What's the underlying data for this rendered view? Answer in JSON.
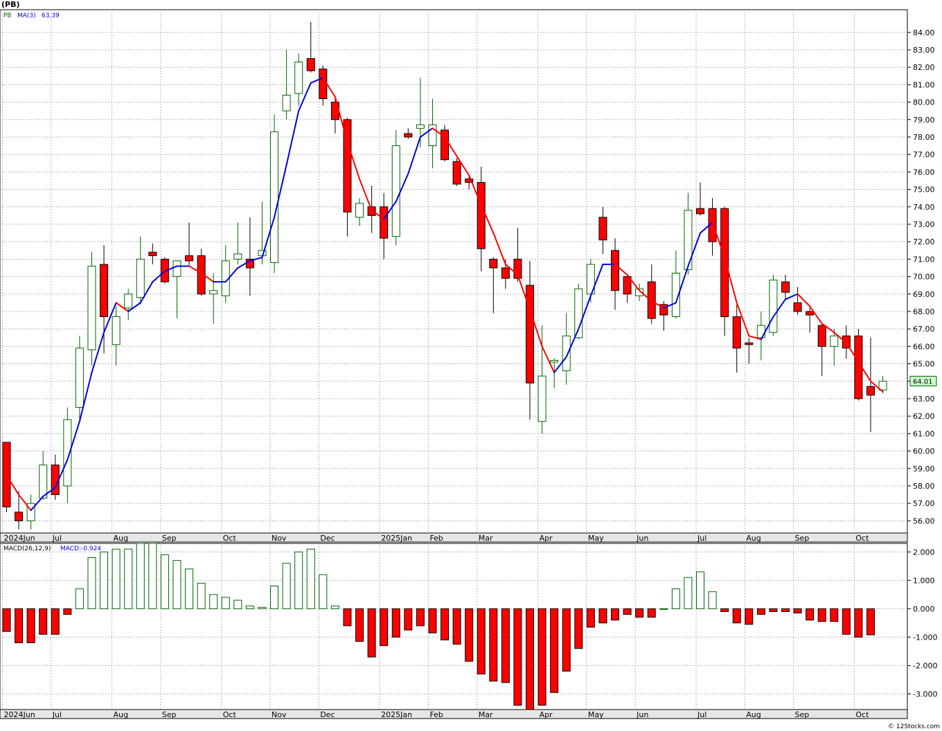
{
  "header": {
    "symbol": "(PB)",
    "legend_ticker": "PB",
    "legend_ma": "MA(3)",
    "legend_ma_value": "63.39"
  },
  "macd_header": {
    "label": "MACD(26,12,9)",
    "value_label": "MACD:-0.924"
  },
  "last_price_label": "64.01",
  "footer": {
    "credit": "© 12Stocks.com"
  },
  "colors": {
    "up": "#006400",
    "down": "#ff0000",
    "ma_up": "#0000dd",
    "ma_down": "#ff0000",
    "grid": "#b4b4b4",
    "axis_bg": "#e6e6e6"
  },
  "chart_data": [
    {
      "type": "candlestick",
      "ylim": [
        55.3,
        85.3
      ],
      "yticks": [
        56,
        57,
        58,
        59,
        60,
        61,
        62,
        63,
        64,
        65,
        66,
        67,
        68,
        69,
        70,
        71,
        72,
        73,
        74,
        75,
        76,
        77,
        78,
        79,
        80,
        81,
        82,
        83,
        84
      ],
      "x_labels": [
        {
          "label": "2024Jun",
          "i": 0
        },
        {
          "label": "Jul",
          "i": 4
        },
        {
          "label": "Aug",
          "i": 9
        },
        {
          "label": "Sep",
          "i": 13
        },
        {
          "label": "Oct",
          "i": 18
        },
        {
          "label": "Nov",
          "i": 22
        },
        {
          "label": "Dec",
          "i": 26
        },
        {
          "label": "2025Jan",
          "i": 31
        },
        {
          "label": "Feb",
          "i": 35
        },
        {
          "label": "Mar",
          "i": 39
        },
        {
          "label": "Apr",
          "i": 44
        },
        {
          "label": "May",
          "i": 48
        },
        {
          "label": "Jun",
          "i": 52
        },
        {
          "label": "Jul",
          "i": 57
        },
        {
          "label": "Aug",
          "i": 61
        },
        {
          "label": "Sep",
          "i": 65
        },
        {
          "label": "Oct",
          "i": 70
        }
      ],
      "candles": [
        {
          "o": 60.5,
          "h": 60.5,
          "l": 56.5,
          "c": 56.8
        },
        {
          "o": 56.5,
          "h": 57.7,
          "l": 55.5,
          "c": 56.0
        },
        {
          "o": 56.0,
          "h": 57.5,
          "l": 55.5,
          "c": 57.0
        },
        {
          "o": 57.3,
          "h": 60.0,
          "l": 57.2,
          "c": 59.2
        },
        {
          "o": 59.2,
          "h": 59.8,
          "l": 57.2,
          "c": 57.5
        },
        {
          "o": 58.0,
          "h": 62.5,
          "l": 57.0,
          "c": 61.8
        },
        {
          "o": 62.5,
          "h": 66.6,
          "l": 61.8,
          "c": 65.9
        },
        {
          "o": 65.8,
          "h": 71.4,
          "l": 64.9,
          "c": 70.6
        },
        {
          "o": 70.7,
          "h": 71.8,
          "l": 65.6,
          "c": 67.7
        },
        {
          "o": 66.1,
          "h": 68.3,
          "l": 64.9,
          "c": 67.7
        },
        {
          "o": 68.2,
          "h": 69.3,
          "l": 67.5,
          "c": 69.0
        },
        {
          "o": 68.8,
          "h": 72.3,
          "l": 68.4,
          "c": 71.0
        },
        {
          "o": 71.4,
          "h": 71.9,
          "l": 70.7,
          "c": 71.2
        },
        {
          "o": 71.0,
          "h": 71.1,
          "l": 69.6,
          "c": 69.7
        },
        {
          "o": 70.0,
          "h": 70.9,
          "l": 67.6,
          "c": 70.9
        },
        {
          "o": 71.2,
          "h": 73.1,
          "l": 70.6,
          "c": 70.9
        },
        {
          "o": 71.2,
          "h": 71.6,
          "l": 68.9,
          "c": 69.0
        },
        {
          "o": 69.0,
          "h": 70.2,
          "l": 67.3,
          "c": 69.2
        },
        {
          "o": 68.9,
          "h": 71.8,
          "l": 68.5,
          "c": 70.9
        },
        {
          "o": 71.0,
          "h": 73.1,
          "l": 70.7,
          "c": 71.3
        },
        {
          "o": 71.0,
          "h": 73.4,
          "l": 68.9,
          "c": 70.5
        },
        {
          "o": 71.2,
          "h": 74.3,
          "l": 70.7,
          "c": 71.5
        },
        {
          "o": 70.8,
          "h": 79.3,
          "l": 70.2,
          "c": 78.3
        },
        {
          "o": 79.5,
          "h": 83.0,
          "l": 79.0,
          "c": 80.4
        },
        {
          "o": 80.5,
          "h": 82.8,
          "l": 79.8,
          "c": 82.3
        },
        {
          "o": 82.5,
          "h": 84.6,
          "l": 81.7,
          "c": 81.8
        },
        {
          "o": 81.9,
          "h": 82.1,
          "l": 79.8,
          "c": 80.2
        },
        {
          "o": 80.0,
          "h": 80.2,
          "l": 78.2,
          "c": 79.0
        },
        {
          "o": 79.0,
          "h": 79.1,
          "l": 72.3,
          "c": 73.7
        },
        {
          "o": 73.4,
          "h": 74.5,
          "l": 72.9,
          "c": 74.2
        },
        {
          "o": 74.0,
          "h": 75.2,
          "l": 72.5,
          "c": 73.5
        },
        {
          "o": 74.0,
          "h": 74.8,
          "l": 71.0,
          "c": 72.2
        },
        {
          "o": 72.3,
          "h": 78.4,
          "l": 71.8,
          "c": 77.5
        },
        {
          "o": 78.2,
          "h": 78.5,
          "l": 77.9,
          "c": 78.0
        },
        {
          "o": 78.5,
          "h": 81.4,
          "l": 77.4,
          "c": 78.7
        },
        {
          "o": 77.5,
          "h": 80.2,
          "l": 76.2,
          "c": 78.7
        },
        {
          "o": 78.4,
          "h": 78.7,
          "l": 76.6,
          "c": 76.7
        },
        {
          "o": 76.6,
          "h": 76.8,
          "l": 75.2,
          "c": 75.3
        },
        {
          "o": 75.6,
          "h": 75.8,
          "l": 75.0,
          "c": 75.4
        },
        {
          "o": 75.4,
          "h": 76.3,
          "l": 70.3,
          "c": 71.6
        },
        {
          "o": 71.0,
          "h": 71.1,
          "l": 67.9,
          "c": 70.5
        },
        {
          "o": 70.5,
          "h": 71.0,
          "l": 69.3,
          "c": 69.9
        },
        {
          "o": 71.0,
          "h": 72.8,
          "l": 69.7,
          "c": 69.9
        },
        {
          "o": 69.5,
          "h": 70.9,
          "l": 61.8,
          "c": 63.9
        },
        {
          "o": 61.7,
          "h": 67.2,
          "l": 61.0,
          "c": 64.3
        },
        {
          "o": 65.1,
          "h": 65.3,
          "l": 63.6,
          "c": 65.2
        },
        {
          "o": 64.6,
          "h": 67.9,
          "l": 63.8,
          "c": 66.6
        },
        {
          "o": 66.5,
          "h": 69.6,
          "l": 66.4,
          "c": 69.3
        },
        {
          "o": 69.0,
          "h": 71.0,
          "l": 68.5,
          "c": 70.7
        },
        {
          "o": 73.4,
          "h": 74.0,
          "l": 71.3,
          "c": 72.1
        },
        {
          "o": 71.5,
          "h": 72.2,
          "l": 68.1,
          "c": 69.2
        },
        {
          "o": 70.0,
          "h": 70.1,
          "l": 68.5,
          "c": 69.0
        },
        {
          "o": 68.9,
          "h": 69.6,
          "l": 68.6,
          "c": 69.3
        },
        {
          "o": 69.7,
          "h": 70.7,
          "l": 67.3,
          "c": 67.6
        },
        {
          "o": 68.4,
          "h": 68.6,
          "l": 66.9,
          "c": 67.8
        },
        {
          "o": 67.7,
          "h": 71.5,
          "l": 67.6,
          "c": 70.2
        },
        {
          "o": 70.4,
          "h": 74.8,
          "l": 70.1,
          "c": 73.8
        },
        {
          "o": 73.9,
          "h": 75.4,
          "l": 73.5,
          "c": 73.6
        },
        {
          "o": 73.9,
          "h": 74.5,
          "l": 71.2,
          "c": 72.0
        },
        {
          "o": 73.9,
          "h": 74.0,
          "l": 66.6,
          "c": 67.7
        },
        {
          "o": 67.7,
          "h": 68.4,
          "l": 64.5,
          "c": 65.9
        },
        {
          "o": 66.2,
          "h": 66.5,
          "l": 65.0,
          "c": 66.1
        },
        {
          "o": 66.5,
          "h": 68.0,
          "l": 65.2,
          "c": 67.2
        },
        {
          "o": 66.8,
          "h": 70.1,
          "l": 66.6,
          "c": 69.8
        },
        {
          "o": 69.7,
          "h": 70.1,
          "l": 68.7,
          "c": 69.1
        },
        {
          "o": 68.5,
          "h": 69.4,
          "l": 67.8,
          "c": 68.0
        },
        {
          "o": 68.0,
          "h": 68.2,
          "l": 66.8,
          "c": 67.8
        },
        {
          "o": 67.2,
          "h": 67.3,
          "l": 64.3,
          "c": 66.0
        },
        {
          "o": 66.0,
          "h": 67.0,
          "l": 64.9,
          "c": 66.6
        },
        {
          "o": 66.6,
          "h": 67.2,
          "l": 65.3,
          "c": 65.9
        },
        {
          "o": 66.6,
          "h": 67.0,
          "l": 62.9,
          "c": 63.0
        },
        {
          "o": 63.7,
          "h": 66.5,
          "l": 61.1,
          "c": 63.2
        },
        {
          "o": 63.5,
          "h": 64.3,
          "l": 63.3,
          "c": 64.0
        }
      ],
      "ma3": [
        58.6,
        57.5,
        56.6,
        57.4,
        57.9,
        59.5,
        61.7,
        64.5,
        66.8,
        68.5,
        68.0,
        68.5,
        69.7,
        70.3,
        70.6,
        70.6,
        70.2,
        69.7,
        69.7,
        70.5,
        70.9,
        71.1,
        73.4,
        76.4,
        79.5,
        81.1,
        81.4,
        80.3,
        77.7,
        75.6,
        73.8,
        73.3,
        74.3,
        75.9,
        78.0,
        78.5,
        78.0,
        76.9,
        75.8,
        74.1,
        72.5,
        70.7,
        70.1,
        68.1,
        66.0,
        64.5,
        65.4,
        67.0,
        68.9,
        70.7,
        70.7,
        70.1,
        69.2,
        68.6,
        68.2,
        68.5,
        70.6,
        72.5,
        73.1,
        71.1,
        68.5,
        66.6,
        66.4,
        67.7,
        68.7,
        69.0,
        68.3,
        67.3,
        66.8,
        66.2,
        65.1,
        64.0,
        63.4
      ]
    },
    {
      "type": "bar",
      "series": [
        {
          "values": [
            -0.8,
            -1.2,
            -1.2,
            -0.9,
            -0.9,
            -0.2,
            0.7,
            1.8,
            2.0,
            2.1,
            2.1,
            2.3,
            2.3,
            1.9,
            1.7,
            1.4,
            0.9,
            0.5,
            0.4,
            0.3,
            0.1,
            0.05,
            0.8,
            1.6,
            2.0,
            2.1,
            1.2,
            0.1,
            -0.6,
            -1.15,
            -1.7,
            -1.3,
            -1.0,
            -0.75,
            -0.6,
            -0.85,
            -1.1,
            -1.25,
            -1.85,
            -2.3,
            -2.55,
            -2.6,
            -3.4,
            -3.6,
            -3.4,
            -2.95,
            -2.2,
            -1.4,
            -0.65,
            -0.5,
            -0.4,
            -0.2,
            -0.3,
            -0.3,
            0.0,
            0.7,
            1.1,
            1.3,
            0.6,
            -0.1,
            -0.5,
            -0.55,
            -0.2,
            -0.1,
            -0.1,
            -0.15,
            -0.4,
            -0.45,
            -0.45,
            -0.9,
            -1.0,
            -0.92
          ]
        }
      ],
      "ylim": [
        -3.55,
        2.3
      ],
      "yticks": [
        -3.0,
        -2.0,
        -1.0,
        0.0,
        1.0,
        2.0
      ],
      "ytick_labels": [
        "-3.000",
        "-2.000",
        "-1.000",
        "0.000",
        "1.000",
        "2.000"
      ]
    }
  ]
}
